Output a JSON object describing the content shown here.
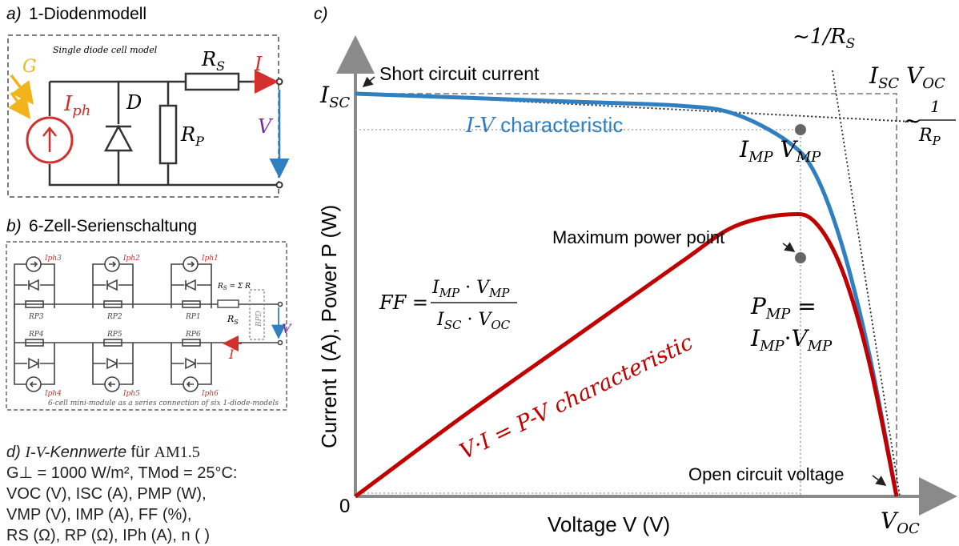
{
  "panel_a": {
    "tag": "a)",
    "title": "1-Diodenmodell",
    "caption": "Single diode cell model",
    "G": "G",
    "Iph": "I",
    "Iph_sub": "ph",
    "D": "D",
    "RS": "R",
    "RS_sub": "S",
    "RP": "R",
    "RP_sub": "P",
    "I": "I",
    "V": "V"
  },
  "panel_b": {
    "tag": "b)",
    "title": "6-Zell-Serienschaltung",
    "caption": "6-cell mini-module as a series connection of six 1-diode-models",
    "top_sources": [
      "Iph3",
      "Iph2",
      "Iph1"
    ],
    "top_resistors": [
      "RP3",
      "RP2",
      "RP1"
    ],
    "bottom_resistors": [
      "RP4",
      "RP5",
      "RP6"
    ],
    "bottom_sources": [
      "Iph4",
      "Iph5",
      "Iph6"
    ],
    "rs_label": "R",
    "rs_sub": "S",
    "rs_formula": "R",
    "bpd": "BPD",
    "V": "V",
    "I": "I"
  },
  "panel_c": {
    "tag": "c)",
    "ylabel": "Current I (A), Power P (W)",
    "xlabel": "Voltage V (V)",
    "origin": "0",
    "isc": "I",
    "isc_sub": "SC",
    "voc": "V",
    "voc_sub": "OC",
    "short_circuit": "Short circuit current",
    "open_circuit": "Open circuit voltage",
    "mpp": "Maximum power point",
    "iv_label_a": "I-V",
    "iv_label_b": " characteristic",
    "pv_label": "V·I = P-V characteristic",
    "imp_vmp": "I",
    "pmp": "P",
    "rs_slope": "~1/R",
    "rp_slope": "~",
    "iscvoc": "I",
    "ff": "FF ="
  },
  "panel_d": {
    "tag": "d)",
    "line1_a": "I-V-",
    "line1_b": "Kennwerte",
    "line1_c": " für ",
    "line1_d": "AM1.5",
    "line2": "G⊥ = 1000 W/m², TMod = 25°C:",
    "line3": "VOC (V), ISC (A),  PMP (W),",
    "line4": "VMP (V), IMP (A),  FF (%),",
    "line5": "RS (Ω),  RP (Ω),  IPh (A),  n ( )"
  },
  "colors": {
    "iv_curve": "#2f7fc1",
    "pv_curve": "#c00000",
    "red_label": "#d32f2f",
    "violet": "#7b2fa0",
    "sun": "#f2b31b",
    "axis": "#8a8a8a"
  },
  "chart_data": {
    "type": "line",
    "title": "",
    "xlabel": "Voltage V (V)",
    "ylabel": "Current I (A), Power P (W)",
    "series": [
      {
        "name": "I-V characteristic",
        "x": [
          0,
          0.2,
          0.4,
          0.6,
          0.7,
          0.8,
          0.85,
          0.9,
          0.95,
          1.0
        ],
        "y": [
          1.0,
          0.99,
          0.98,
          0.97,
          0.95,
          0.88,
          0.8,
          0.62,
          0.35,
          0
        ]
      },
      {
        "name": "V·I = P-V characteristic",
        "x": [
          0,
          0.2,
          0.4,
          0.6,
          0.7,
          0.8,
          0.85,
          0.9,
          0.95,
          1.0
        ],
        "y": [
          0,
          0.2,
          0.39,
          0.58,
          0.67,
          0.7,
          0.68,
          0.56,
          0.33,
          0
        ]
      }
    ]
  }
}
